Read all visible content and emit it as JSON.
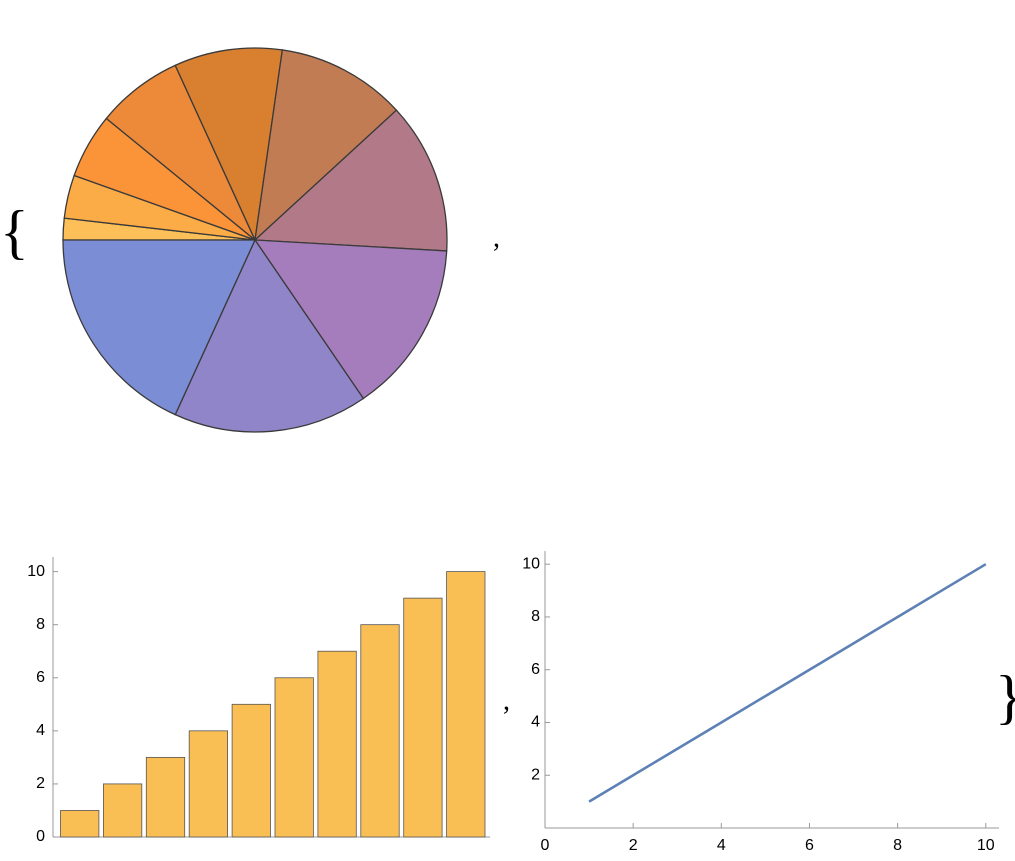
{
  "chart_data": [
    {
      "type": "pie",
      "values": [
        1,
        2,
        3,
        4,
        5,
        6,
        7,
        8,
        9,
        10
      ],
      "colors": [
        "#fdc058",
        "#fcac47",
        "#fb9338",
        "#ec8a3a",
        "#d87f30",
        "#c27c54",
        "#b27a88",
        "#a57dbd",
        "#8f85c8",
        "#7b8dd5"
      ]
    },
    {
      "type": "bar",
      "values": [
        1,
        2,
        3,
        4,
        5,
        6,
        7,
        8,
        9,
        10
      ],
      "color": "#f9bf55",
      "ylim": [
        0,
        10.55
      ],
      "yticks": [
        0,
        2,
        4,
        6,
        8,
        10
      ]
    },
    {
      "type": "line",
      "x": [
        1,
        2,
        3,
        4,
        5,
        6,
        7,
        8,
        9,
        10
      ],
      "values": [
        1,
        2,
        3,
        4,
        5,
        6,
        7,
        8,
        9,
        10
      ],
      "color": "#5e81b5",
      "xlim": [
        0,
        10.3
      ],
      "xticks": [
        0,
        2,
        4,
        6,
        8,
        10
      ],
      "ylim": [
        0,
        10.5
      ],
      "yticks": [
        2,
        4,
        6,
        8,
        10
      ]
    }
  ],
  "punctuation": [
    "{",
    ",",
    ",",
    "}"
  ]
}
